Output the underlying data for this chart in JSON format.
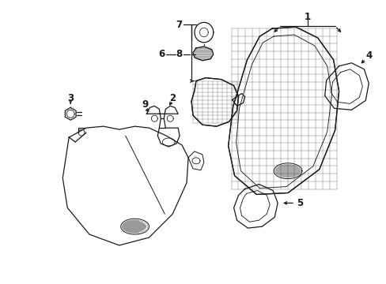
{
  "bg_color": "#ffffff",
  "line_color": "#1a1a1a",
  "fig_width": 4.89,
  "fig_height": 3.6,
  "dpi": 100,
  "font_size": 8.5
}
